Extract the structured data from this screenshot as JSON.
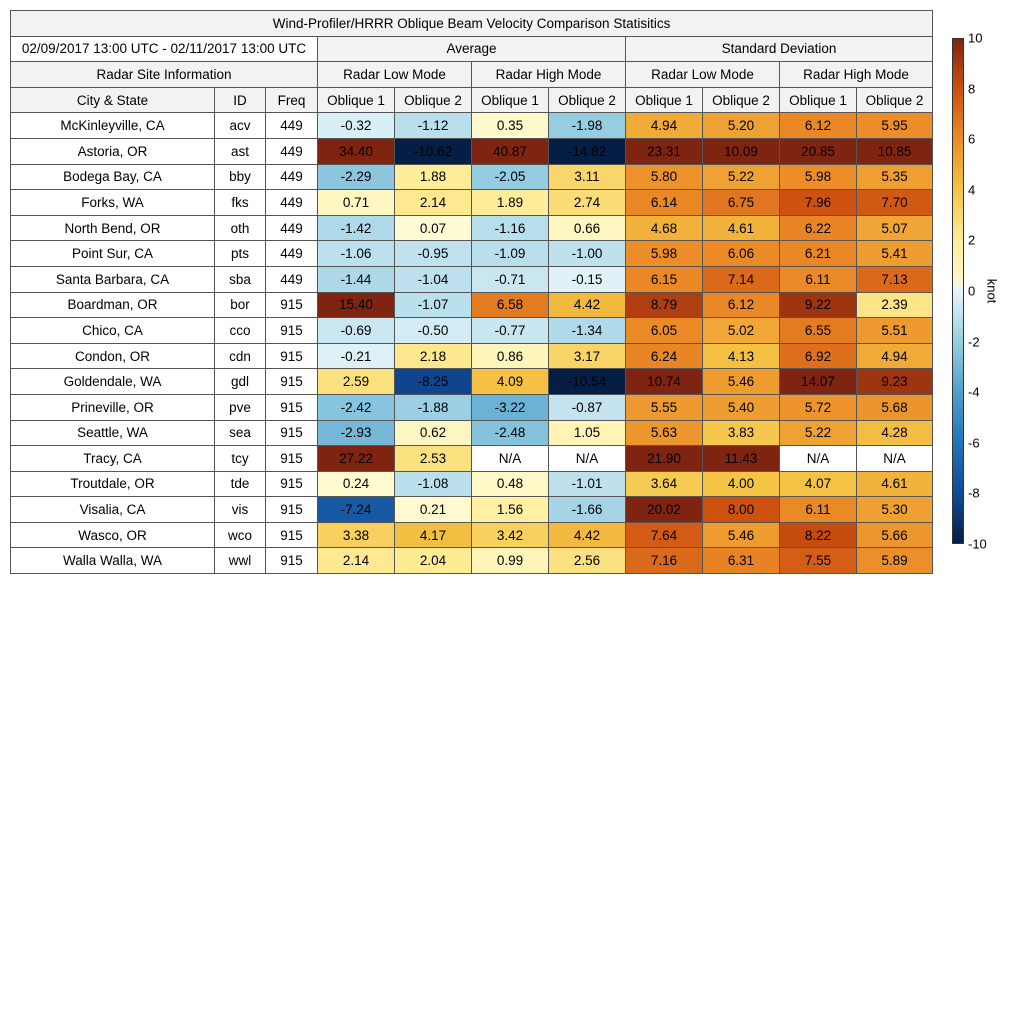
{
  "chart_data": {
    "type": "table",
    "title": "Wind-Profiler/HRRR Oblique Beam Velocity Comparison Statisitics",
    "period": "02/09/2017 13:00 UTC - 02/11/2017 13:00 UTC",
    "site_group_label": "Radar Site Information",
    "stat_groups": [
      "Average",
      "Standard Deviation"
    ],
    "modes": [
      "Radar Low Mode",
      "Radar High Mode"
    ],
    "beams": [
      "Oblique 1",
      "Oblique 2"
    ],
    "site_columns": [
      "City & State",
      "ID",
      "Freq"
    ],
    "colorbar": {
      "min": -10,
      "max": 10,
      "unit": "knot",
      "ticks": [
        "10",
        "8",
        "6",
        "4",
        "2",
        "0",
        "-2",
        "-4",
        "-6",
        "-8",
        "-10"
      ]
    },
    "rows": [
      {
        "city": "McKinleyville, CA",
        "id": "acv",
        "freq": "449",
        "avg": [
          "-0.32",
          "-1.12",
          "0.35",
          "-1.98"
        ],
        "std": [
          "4.94",
          "5.20",
          "6.12",
          "5.95"
        ]
      },
      {
        "city": "Astoria, OR",
        "id": "ast",
        "freq": "449",
        "avg": [
          "34.40",
          "-10.62",
          "40.87",
          "-14.82"
        ],
        "std": [
          "23.31",
          "10.09",
          "20.85",
          "10.85"
        ]
      },
      {
        "city": "Bodega Bay, CA",
        "id": "bby",
        "freq": "449",
        "avg": [
          "-2.29",
          "1.88",
          "-2.05",
          "3.11"
        ],
        "std": [
          "5.80",
          "5.22",
          "5.98",
          "5.35"
        ]
      },
      {
        "city": "Forks, WA",
        "id": "fks",
        "freq": "449",
        "avg": [
          "0.71",
          "2.14",
          "1.89",
          "2.74"
        ],
        "std": [
          "6.14",
          "6.75",
          "7.96",
          "7.70"
        ]
      },
      {
        "city": "North Bend, OR",
        "id": "oth",
        "freq": "449",
        "avg": [
          "-1.42",
          "0.07",
          "-1.16",
          "0.66"
        ],
        "std": [
          "4.68",
          "4.61",
          "6.22",
          "5.07"
        ]
      },
      {
        "city": "Point Sur, CA",
        "id": "pts",
        "freq": "449",
        "avg": [
          "-1.06",
          "-0.95",
          "-1.09",
          "-1.00"
        ],
        "std": [
          "5.98",
          "6.06",
          "6.21",
          "5.41"
        ]
      },
      {
        "city": "Santa Barbara, CA",
        "id": "sba",
        "freq": "449",
        "avg": [
          "-1.44",
          "-1.04",
          "-0.71",
          "-0.15"
        ],
        "std": [
          "6.15",
          "7.14",
          "6.11",
          "7.13"
        ]
      },
      {
        "city": "Boardman, OR",
        "id": "bor",
        "freq": "915",
        "avg": [
          "15.40",
          "-1.07",
          "6.58",
          "4.42"
        ],
        "std": [
          "8.79",
          "6.12",
          "9.22",
          "2.39"
        ]
      },
      {
        "city": "Chico, CA",
        "id": "cco",
        "freq": "915",
        "avg": [
          "-0.69",
          "-0.50",
          "-0.77",
          "-1.34"
        ],
        "std": [
          "6.05",
          "5.02",
          "6.55",
          "5.51"
        ]
      },
      {
        "city": "Condon, OR",
        "id": "cdn",
        "freq": "915",
        "avg": [
          "-0.21",
          "2.18",
          "0.86",
          "3.17"
        ],
        "std": [
          "6.24",
          "4.13",
          "6.92",
          "4.94"
        ]
      },
      {
        "city": "Goldendale, WA",
        "id": "gdl",
        "freq": "915",
        "avg": [
          "2.59",
          "-8.25",
          "4.09",
          "-10.54"
        ],
        "std": [
          "10.74",
          "5.46",
          "14.07",
          "9.23"
        ]
      },
      {
        "city": "Prineville, OR",
        "id": "pve",
        "freq": "915",
        "avg": [
          "-2.42",
          "-1.88",
          "-3.22",
          "-0.87"
        ],
        "std": [
          "5.55",
          "5.40",
          "5.72",
          "5.68"
        ]
      },
      {
        "city": "Seattle, WA",
        "id": "sea",
        "freq": "915",
        "avg": [
          "-2.93",
          "0.62",
          "-2.48",
          "1.05"
        ],
        "std": [
          "5.63",
          "3.83",
          "5.22",
          "4.28"
        ]
      },
      {
        "city": "Tracy, CA",
        "id": "tcy",
        "freq": "915",
        "avg": [
          "27.22",
          "2.53",
          "N/A",
          "N/A"
        ],
        "std": [
          "21.90",
          "11.43",
          "N/A",
          "N/A"
        ]
      },
      {
        "city": "Troutdale, OR",
        "id": "tde",
        "freq": "915",
        "avg": [
          "0.24",
          "-1.08",
          "0.48",
          "-1.01"
        ],
        "std": [
          "3.64",
          "4.00",
          "4.07",
          "4.61"
        ]
      },
      {
        "city": "Visalia, CA",
        "id": "vis",
        "freq": "915",
        "avg": [
          "-7.24",
          "0.21",
          "1.56",
          "-1.66"
        ],
        "std": [
          "20.02",
          "8.00",
          "6.11",
          "5.30"
        ]
      },
      {
        "city": "Wasco, OR",
        "id": "wco",
        "freq": "915",
        "avg": [
          "3.38",
          "4.17",
          "3.42",
          "4.42"
        ],
        "std": [
          "7.64",
          "5.46",
          "8.22",
          "5.66"
        ]
      },
      {
        "city": "Walla Walla, WA",
        "id": "wwl",
        "freq": "915",
        "avg": [
          "2.14",
          "2.04",
          "0.99",
          "2.56"
        ],
        "std": [
          "7.16",
          "6.31",
          "7.55",
          "5.89"
        ]
      }
    ]
  }
}
